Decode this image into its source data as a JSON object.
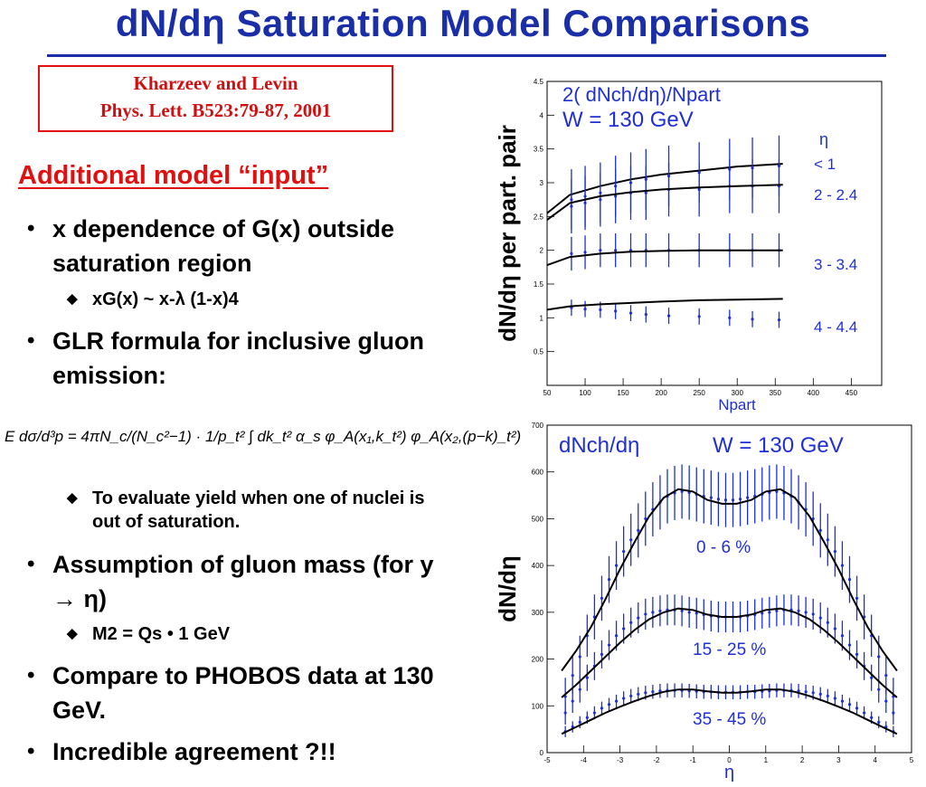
{
  "slide": {
    "title": "dN/dη Saturation Model Comparisons",
    "reference": {
      "line1": "Kharzeev and Levin",
      "line2": "Phys. Lett. B523:79-87, 2001"
    },
    "section_heading": "Additional model “input”",
    "bullets": [
      {
        "text": "x dependence of G(x) outside saturation region",
        "sub": [
          {
            "text": "xG(x) ~ x-λ (1-x)4"
          }
        ]
      },
      {
        "text": "GLR formula for inclusive gluon emission:",
        "sub": [
          {
            "text": "To evaluate yield when one of nuclei is out of saturation."
          }
        ]
      },
      {
        "text": "Assumption of gluon mass (for y → η)",
        "sub": [
          {
            "text": "M2 = Qs • 1 GeV"
          }
        ]
      },
      {
        "text": "Compare to PHOBOS data at 130 GeV."
      },
      {
        "text": "Incredible agreement ?!!"
      }
    ],
    "formula": "E dσ/d³p = 4πN_c/(N_c²−1) · 1/p_t² ∫ dk_t² α_s φ_A(x₁,k_t²) φ_A(x₂,(p−k)_t²)"
  },
  "chart_data": [
    {
      "type": "line",
      "title": "2( dNch/dη)/Npart",
      "subtitle": "W = 130 GeV",
      "xlabel": "Npart",
      "ylabel": "dN/dη per part. pair",
      "xlim": [
        50,
        490
      ],
      "ylim": [
        0,
        4.5
      ],
      "xticks": [
        50,
        100,
        150,
        200,
        250,
        300,
        350,
        400,
        450
      ],
      "yticks": [
        0.5,
        1,
        1.5,
        2,
        2.5,
        3,
        3.5,
        4,
        4.5
      ],
      "legend_title": "η",
      "x": [
        82,
        100,
        120,
        140,
        160,
        180,
        210,
        250,
        290,
        320,
        355
      ],
      "series": [
        {
          "name": "< 1",
          "values": [
            2.75,
            2.8,
            2.85,
            2.95,
            3.0,
            3.05,
            3.1,
            3.15,
            3.2,
            3.22,
            3.25
          ],
          "errors": [
            0.45,
            0.45,
            0.45,
            0.45,
            0.45,
            0.45,
            0.45,
            0.45,
            0.45,
            0.45,
            0.45
          ],
          "model_x": [
            50,
            80,
            120,
            160,
            200,
            250,
            300,
            360
          ],
          "model": [
            2.55,
            2.82,
            2.95,
            3.05,
            3.12,
            3.18,
            3.24,
            3.28
          ]
        },
        {
          "name": "2 - 2.4",
          "values": [
            2.65,
            2.7,
            2.75,
            2.8,
            2.85,
            2.85,
            2.9,
            2.9,
            2.95,
            2.95,
            2.95
          ],
          "errors": [
            0.4,
            0.4,
            0.4,
            0.4,
            0.4,
            0.4,
            0.4,
            0.4,
            0.4,
            0.4,
            0.4
          ],
          "model_x": [
            50,
            80,
            120,
            160,
            200,
            250,
            300,
            360
          ],
          "model": [
            2.45,
            2.7,
            2.8,
            2.86,
            2.9,
            2.93,
            2.95,
            2.97
          ]
        },
        {
          "name": "3 - 3.4",
          "values": [
            1.95,
            1.97,
            2.0,
            2.0,
            2.0,
            2.0,
            2.0,
            2.0,
            2.0,
            2.0,
            2.0
          ],
          "errors": [
            0.25,
            0.25,
            0.25,
            0.25,
            0.25,
            0.25,
            0.25,
            0.25,
            0.25,
            0.25,
            0.25
          ],
          "model_x": [
            50,
            80,
            120,
            160,
            200,
            250,
            300,
            360
          ],
          "model": [
            1.78,
            1.9,
            1.95,
            1.98,
            1.99,
            2.0,
            2.0,
            2.0
          ]
        },
        {
          "name": "4 - 4.4",
          "values": [
            1.15,
            1.13,
            1.12,
            1.1,
            1.07,
            1.05,
            1.03,
            1.02,
            1.0,
            0.98,
            0.97
          ],
          "errors": [
            0.12,
            0.12,
            0.12,
            0.12,
            0.12,
            0.12,
            0.12,
            0.12,
            0.12,
            0.12,
            0.12
          ],
          "model_x": [
            50,
            80,
            120,
            160,
            200,
            250,
            300,
            360
          ],
          "model": [
            1.12,
            1.17,
            1.2,
            1.22,
            1.24,
            1.26,
            1.27,
            1.28
          ]
        }
      ]
    },
    {
      "type": "line",
      "title": "dNch/dη",
      "subtitle": "W = 130 GeV",
      "xlabel": "η",
      "ylabel": "dN/dη",
      "xlim": [
        -5,
        5
      ],
      "ylim": [
        0,
        700
      ],
      "xticks": [
        -5,
        -4,
        -3,
        -2,
        -1,
        0,
        1,
        2,
        3,
        4,
        5
      ],
      "yticks": [
        0,
        100,
        200,
        300,
        400,
        500,
        600,
        700
      ],
      "x": [
        -4.5,
        -4.3,
        -4.1,
        -3.9,
        -3.7,
        -3.5,
        -3.3,
        -3.1,
        -2.9,
        -2.7,
        -2.5,
        -2.3,
        -2.1,
        -1.9,
        -1.7,
        -1.5,
        -1.3,
        -1.1,
        -0.9,
        -0.7,
        -0.5,
        -0.3,
        -0.1,
        0.1,
        0.3,
        0.5,
        0.7,
        0.9,
        1.1,
        1.3,
        1.5,
        1.7,
        1.9,
        2.1,
        2.3,
        2.5,
        2.7,
        2.9,
        3.1,
        3.3,
        3.5,
        3.7,
        3.9,
        4.1,
        4.3,
        4.5
      ],
      "series": [
        {
          "name": "0 - 6 %",
          "values": [
            120,
            165,
            205,
            250,
            290,
            330,
            370,
            400,
            430,
            455,
            475,
            500,
            520,
            535,
            548,
            555,
            558,
            556,
            552,
            548,
            545,
            542,
            540,
            540,
            542,
            545,
            548,
            552,
            556,
            558,
            555,
            548,
            535,
            520,
            500,
            475,
            455,
            430,
            400,
            370,
            330,
            290,
            250,
            205,
            165,
            120
          ],
          "errors": [
            40,
            40,
            45,
            45,
            48,
            48,
            50,
            52,
            54,
            56,
            58,
            58,
            58,
            58,
            58,
            58,
            58,
            58,
            58,
            58,
            58,
            58,
            58,
            58,
            58,
            58,
            58,
            58,
            58,
            58,
            58,
            58,
            58,
            58,
            58,
            58,
            56,
            54,
            52,
            50,
            48,
            48,
            45,
            45,
            40,
            40
          ],
          "model_x": [
            -4.6,
            -4.2,
            -3.8,
            -3.4,
            -3.0,
            -2.6,
            -2.2,
            -1.8,
            -1.4,
            -1.0,
            -0.6,
            -0.2,
            0.2,
            0.6,
            1.0,
            1.4,
            1.8,
            2.2,
            2.6,
            3.0,
            3.4,
            3.8,
            4.2,
            4.6
          ],
          "model": [
            175,
            218,
            268,
            328,
            392,
            450,
            505,
            545,
            563,
            558,
            540,
            532,
            532,
            540,
            558,
            563,
            545,
            505,
            450,
            392,
            328,
            268,
            218,
            175
          ]
        },
        {
          "name": "15 - 25 %",
          "values": [
            85,
            110,
            135,
            160,
            185,
            210,
            230,
            250,
            265,
            278,
            288,
            296,
            300,
            303,
            305,
            305,
            303,
            300,
            298,
            295,
            292,
            290,
            290,
            290,
            290,
            292,
            295,
            298,
            300,
            303,
            305,
            305,
            303,
            300,
            296,
            288,
            278,
            265,
            250,
            230,
            210,
            185,
            160,
            135,
            110,
            85
          ],
          "errors": [
            25,
            25,
            28,
            28,
            30,
            30,
            32,
            32,
            32,
            32,
            33,
            33,
            33,
            33,
            33,
            33,
            33,
            33,
            33,
            33,
            33,
            33,
            33,
            33,
            33,
            33,
            33,
            33,
            33,
            33,
            33,
            33,
            33,
            33,
            33,
            33,
            32,
            32,
            32,
            32,
            30,
            30,
            28,
            28,
            25,
            25
          ],
          "model_x": [
            -4.6,
            -4.2,
            -3.8,
            -3.4,
            -3.0,
            -2.6,
            -2.2,
            -1.8,
            -1.4,
            -1.0,
            -0.6,
            -0.2,
            0.2,
            0.6,
            1.0,
            1.4,
            1.8,
            2.2,
            2.6,
            3.0,
            3.4,
            3.8,
            4.2,
            4.6
          ],
          "model": [
            118,
            145,
            175,
            205,
            235,
            262,
            285,
            300,
            308,
            305,
            295,
            290,
            290,
            295,
            305,
            308,
            300,
            285,
            262,
            235,
            205,
            175,
            145,
            118
          ]
        },
        {
          "name": "35 - 45 %",
          "values": [
            45,
            55,
            65,
            75,
            85,
            95,
            103,
            110,
            116,
            121,
            125,
            128,
            130,
            132,
            133,
            133,
            133,
            132,
            131,
            130,
            130,
            129,
            129,
            129,
            129,
            130,
            130,
            131,
            132,
            133,
            133,
            133,
            132,
            130,
            128,
            125,
            121,
            116,
            110,
            103,
            95,
            85,
            75,
            65,
            55,
            45
          ],
          "errors": [
            12,
            12,
            13,
            13,
            14,
            14,
            14,
            14,
            15,
            15,
            15,
            15,
            15,
            15,
            15,
            15,
            15,
            15,
            15,
            15,
            15,
            15,
            15,
            15,
            15,
            15,
            15,
            15,
            15,
            15,
            15,
            15,
            15,
            15,
            15,
            15,
            15,
            15,
            14,
            14,
            14,
            14,
            13,
            13,
            12,
            12
          ],
          "model_x": [
            -4.6,
            -4.2,
            -3.8,
            -3.4,
            -3.0,
            -2.6,
            -2.2,
            -1.8,
            -1.4,
            -1.0,
            -0.6,
            -0.2,
            0.2,
            0.6,
            1.0,
            1.4,
            1.8,
            2.2,
            2.6,
            3.0,
            3.4,
            3.8,
            4.2,
            4.6
          ],
          "model": [
            40,
            55,
            70,
            85,
            98,
            110,
            121,
            130,
            135,
            135,
            131,
            128,
            128,
            131,
            135,
            135,
            130,
            121,
            110,
            98,
            85,
            70,
            55,
            40
          ]
        }
      ]
    }
  ]
}
